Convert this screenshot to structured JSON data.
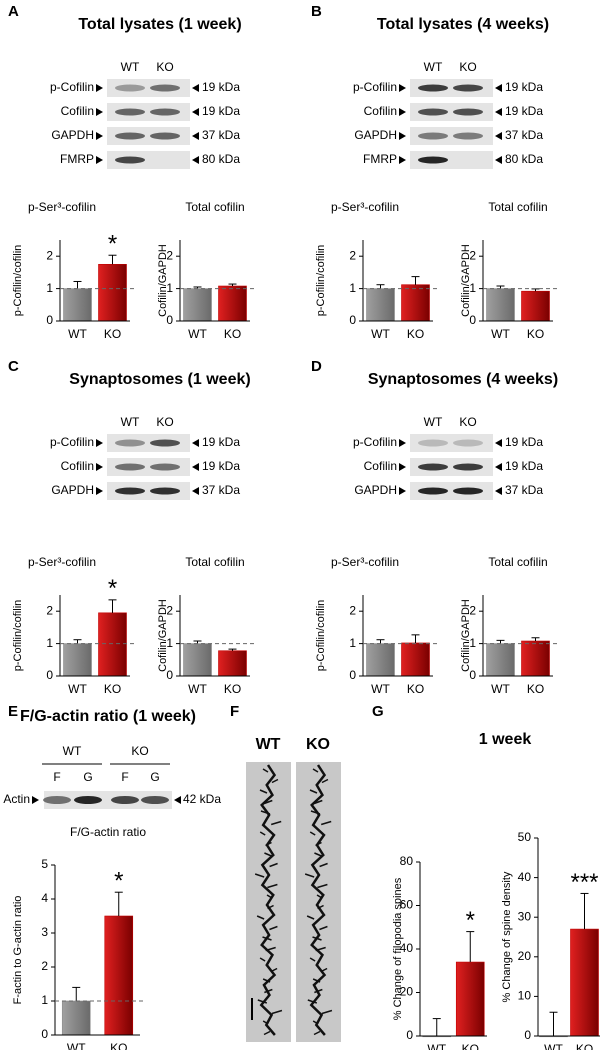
{
  "panels": [
    {
      "letter": "A",
      "title": "Total lysates (1 week)",
      "blot": {
        "lanes": [
          "WT",
          "KO"
        ],
        "rows": [
          {
            "label": "p-Cofilin",
            "size": "19 kDa"
          },
          {
            "label": "Cofilin",
            "size": "19 kDa"
          },
          {
            "label": "GAPDH",
            "size": "37 kDa"
          },
          {
            "label": "FMRP",
            "size": "80 kDa"
          }
        ]
      }
    },
    {
      "letter": "B",
      "title": "Total lysates (4 weeks)",
      "blot": {
        "lanes": [
          "WT",
          "KO"
        ],
        "rows": [
          {
            "label": "p-Cofilin",
            "size": "19 kDa"
          },
          {
            "label": "Cofilin",
            "size": "19 kDa"
          },
          {
            "label": "GAPDH",
            "size": "37 kDa"
          },
          {
            "label": "FMRP",
            "size": "80 kDa"
          }
        ]
      }
    },
    {
      "letter": "C",
      "title": "Synaptosomes (1 week)",
      "blot": {
        "lanes": [
          "WT",
          "KO"
        ],
        "rows": [
          {
            "label": "p-Cofilin",
            "size": "19 kDa"
          },
          {
            "label": "Cofilin",
            "size": "19 kDa"
          },
          {
            "label": "GAPDH",
            "size": "37 kDa"
          }
        ]
      }
    },
    {
      "letter": "D",
      "title": "Synaptosomes (4 weeks)",
      "blot": {
        "lanes": [
          "WT",
          "KO"
        ],
        "rows": [
          {
            "label": "p-Cofilin",
            "size": "19 kDa"
          },
          {
            "label": "Cofilin",
            "size": "19 kDa"
          },
          {
            "label": "GAPDH",
            "size": "37 kDa"
          }
        ]
      }
    },
    {
      "letter": "E",
      "title": "F/G-actin ratio (1 week)",
      "blot": {
        "groups": [
          "WT",
          "KO"
        ],
        "lanes": [
          "F",
          "G",
          "F",
          "G"
        ],
        "rows": [
          {
            "label": "Actin",
            "size": "42 kDa"
          }
        ]
      }
    },
    {
      "letter": "F",
      "image_labels": [
        "WT",
        "KO"
      ]
    },
    {
      "letter": "G",
      "title": "1 week"
    }
  ],
  "chart_data": [
    {
      "type": "bar",
      "title": "p-Ser³-cofilin",
      "y_label": "p-Cofilin/cofilin",
      "categories": [
        "WT",
        "KO"
      ],
      "values": [
        1.0,
        1.75
      ],
      "errors": [
        0.22,
        0.28
      ],
      "colors": [
        "#8c8c8c",
        "#c00000"
      ],
      "ylim": [
        0,
        2.5
      ],
      "yticks": [
        0,
        1,
        2
      ],
      "reference_line": 1,
      "annotation": "*"
    },
    {
      "type": "bar",
      "title": "Total cofilin",
      "y_label": "Cofilin/GAPDH",
      "categories": [
        "WT",
        "KO"
      ],
      "values": [
        1.0,
        1.08
      ],
      "errors": [
        0.05,
        0.06
      ],
      "colors": [
        "#8c8c8c",
        "#c00000"
      ],
      "ylim": [
        0,
        2.5
      ],
      "yticks": [
        0,
        1,
        2
      ],
      "reference_line": 1
    },
    {
      "type": "bar",
      "title": "p-Ser³-cofilin",
      "y_label": "p-Cofilin/cofilin",
      "categories": [
        "WT",
        "KO"
      ],
      "values": [
        1.0,
        1.12
      ],
      "errors": [
        0.12,
        0.25
      ],
      "colors": [
        "#8c8c8c",
        "#c00000"
      ],
      "ylim": [
        0,
        2.5
      ],
      "yticks": [
        0,
        1,
        2
      ],
      "reference_line": 1
    },
    {
      "type": "bar",
      "title": "Total cofilin",
      "y_label": "Cofilin/GAPDH",
      "categories": [
        "WT",
        "KO"
      ],
      "values": [
        1.0,
        0.92
      ],
      "errors": [
        0.08,
        0.07
      ],
      "colors": [
        "#8c8c8c",
        "#c00000"
      ],
      "ylim": [
        0,
        2.5
      ],
      "yticks": [
        0,
        1,
        2
      ],
      "reference_line": 1
    },
    {
      "type": "bar",
      "title": "p-Ser³-cofilin",
      "y_label": "p-Cofilin/cofilin",
      "categories": [
        "WT",
        "KO"
      ],
      "values": [
        1.0,
        1.95
      ],
      "errors": [
        0.12,
        0.4
      ],
      "colors": [
        "#8c8c8c",
        "#c00000"
      ],
      "ylim": [
        0,
        2.5
      ],
      "yticks": [
        0,
        1,
        2
      ],
      "reference_line": 1,
      "annotation": "*"
    },
    {
      "type": "bar",
      "title": "Total cofilin",
      "y_label": "Cofilin/GAPDH",
      "categories": [
        "WT",
        "KO"
      ],
      "values": [
        1.0,
        0.78
      ],
      "errors": [
        0.08,
        0.05
      ],
      "colors": [
        "#8c8c8c",
        "#c00000"
      ],
      "ylim": [
        0,
        2.5
      ],
      "yticks": [
        0,
        1,
        2
      ],
      "reference_line": 1
    },
    {
      "type": "bar",
      "title": "p-Ser³-cofilin",
      "y_label": "p-Cofilin/cofilin",
      "categories": [
        "WT",
        "KO"
      ],
      "values": [
        1.0,
        1.02
      ],
      "errors": [
        0.12,
        0.25
      ],
      "colors": [
        "#8c8c8c",
        "#c00000"
      ],
      "ylim": [
        0,
        2.5
      ],
      "yticks": [
        0,
        1,
        2
      ],
      "reference_line": 1
    },
    {
      "type": "bar",
      "title": "Total cofilin",
      "y_label": "Cofilin/GAPDH",
      "categories": [
        "WT",
        "KO"
      ],
      "values": [
        1.0,
        1.08
      ],
      "errors": [
        0.1,
        0.1
      ],
      "colors": [
        "#8c8c8c",
        "#c00000"
      ],
      "ylim": [
        0,
        2.5
      ],
      "yticks": [
        0,
        1,
        2
      ],
      "reference_line": 1
    },
    {
      "type": "bar",
      "title": "F/G-actin ratio",
      "y_label": "F-actin to G-actin ratio",
      "categories": [
        "WT",
        "KO"
      ],
      "values": [
        1.0,
        3.5
      ],
      "errors": [
        0.4,
        0.7
      ],
      "colors": [
        "#8c8c8c",
        "#c00000"
      ],
      "ylim": [
        0,
        5
      ],
      "yticks": [
        0,
        1,
        2,
        3,
        4,
        5
      ],
      "reference_line": 1,
      "annotation": "*"
    },
    {
      "type": "bar",
      "y_label": "% Change of filopodia spines",
      "categories": [
        "WT",
        "KO"
      ],
      "values": [
        0,
        34
      ],
      "errors": [
        8,
        14
      ],
      "colors": [
        "#8c8c8c",
        "#c00000"
      ],
      "ylim": [
        0,
        80
      ],
      "yticks": [
        0,
        20,
        40,
        60,
        80
      ],
      "annotation": "*"
    },
    {
      "type": "bar",
      "y_label": "% Change of spine density",
      "categories": [
        "WT",
        "KO"
      ],
      "values": [
        0,
        27
      ],
      "errors": [
        6,
        9
      ],
      "colors": [
        "#8c8c8c",
        "#c00000"
      ],
      "ylim": [
        0,
        50
      ],
      "yticks": [
        0,
        10,
        20,
        30,
        40,
        50
      ],
      "annotation": "***"
    }
  ]
}
